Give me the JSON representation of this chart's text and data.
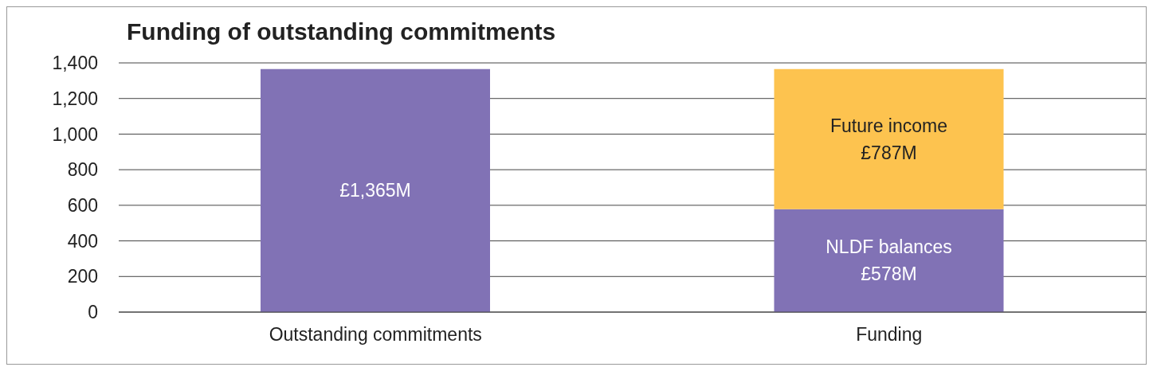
{
  "chart_data": {
    "type": "bar",
    "title": "Funding of outstanding commitments",
    "categories": [
      "Outstanding commitments",
      "Funding"
    ],
    "stacked": true,
    "series": [
      {
        "color": "#8172b5",
        "values": [
          1365,
          null
        ],
        "value_labels": [
          "£1,365M",
          null
        ]
      },
      {
        "name": "NLDF balances",
        "color": "#8172b5",
        "values": [
          null,
          578
        ],
        "value_labels": [
          null,
          "£578M"
        ]
      },
      {
        "name": "Future income",
        "color": "#fdc34f",
        "values": [
          null,
          787
        ],
        "value_labels": [
          null,
          "£787M"
        ]
      }
    ],
    "ylim": [
      0,
      1400
    ],
    "yticks": [
      0,
      200,
      400,
      600,
      800,
      {
        "value": 1000,
        "label": "1,000"
      },
      {
        "value": 1200,
        "label": "1,200"
      },
      {
        "value": 1400,
        "label": "1,400"
      }
    ],
    "grid": "y",
    "legend": false
  }
}
